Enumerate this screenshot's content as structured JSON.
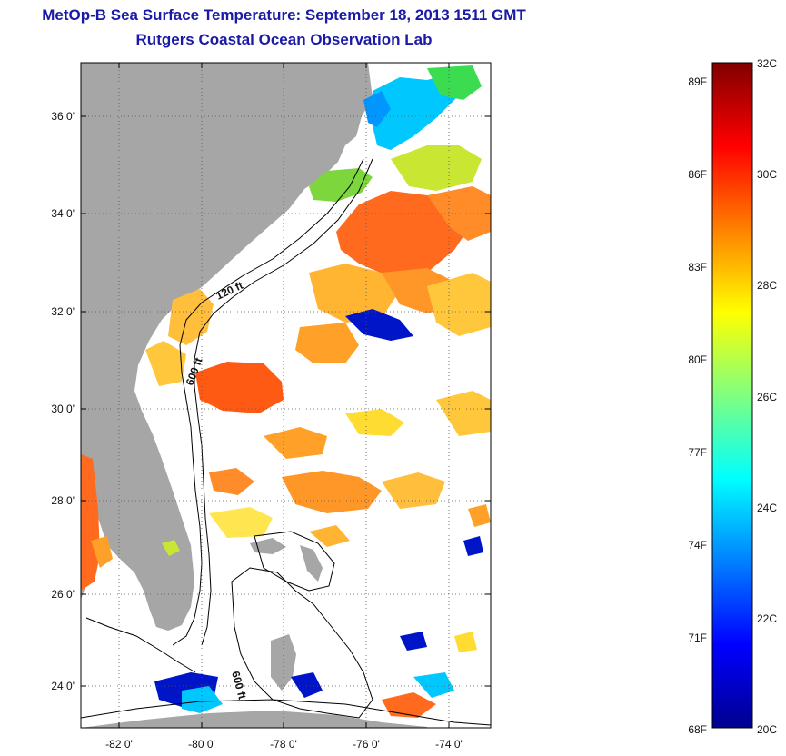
{
  "header": {
    "title": "MetOp-B Sea Surface Temperature:  September 18, 2013 1511 GMT",
    "subtitle": "Rutgers Coastal Ocean Observation Lab"
  },
  "map": {
    "lat_labels": [
      "36 0'",
      "34 0'",
      "32 0'",
      "30 0'",
      "28 0'",
      "26 0'",
      "24 0'"
    ],
    "lon_labels": [
      "-82 0'",
      "-80 0'",
      "-78 0'",
      "-76 0'",
      "-74 0'"
    ],
    "contour_labels": [
      "120 ft",
      "600 ft",
      "600 ft"
    ],
    "colors": {
      "land": "#a6a6a6",
      "ocean_nodata": "#ffffff"
    }
  },
  "colorbar": {
    "f_labels": [
      "89F",
      "86F",
      "83F",
      "80F",
      "77F",
      "74F",
      "71F",
      "68F"
    ],
    "c_labels": [
      "32C",
      "30C",
      "28C",
      "26C",
      "24C",
      "22C",
      "20C"
    ],
    "range_c": [
      20,
      32
    ],
    "colors": [
      "#00008f",
      "#0000ff",
      "#0080ff",
      "#00ffff",
      "#80ff80",
      "#ffff00",
      "#ff8000",
      "#ff0000",
      "#800000"
    ]
  }
}
